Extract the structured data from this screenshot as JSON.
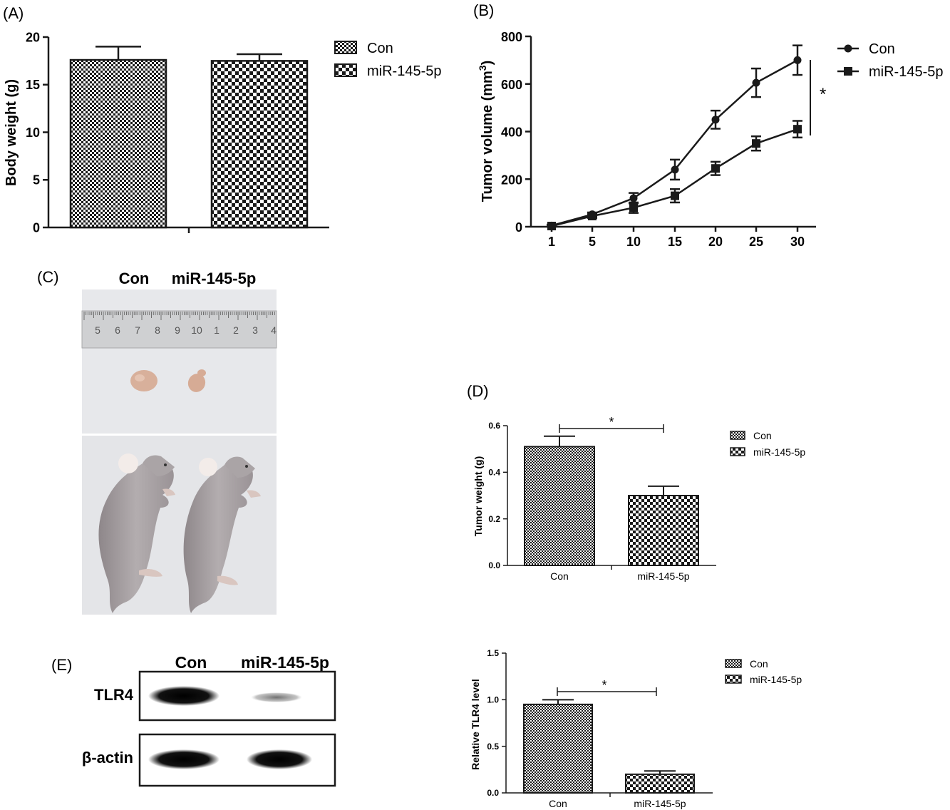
{
  "chart_data": [
    {
      "panel": "(A)",
      "type": "bar",
      "categories": [
        "Con",
        "miR-145-5p"
      ],
      "values": [
        17.6,
        17.5
      ],
      "errors": [
        1.4,
        0.7
      ],
      "ylabel": "Body weight (g)",
      "xlabel": "",
      "ylim": [
        0,
        20
      ],
      "yticks": [
        "0",
        "5",
        "10",
        "15",
        "20"
      ],
      "legend": [
        "Con",
        "miR-145-5p"
      ],
      "legend_position": "right"
    },
    {
      "panel": "(B)",
      "type": "line",
      "x": [
        "1",
        "5",
        "10",
        "15",
        "20",
        "25",
        "30"
      ],
      "series": [
        {
          "name": "Con",
          "marker": "circle",
          "values": [
            5,
            52,
            120,
            240,
            450,
            605,
            700
          ],
          "errors": [
            4,
            8,
            22,
            42,
            38,
            60,
            62
          ]
        },
        {
          "name": "miR-145-5p",
          "marker": "square",
          "values": [
            3,
            45,
            80,
            130,
            245,
            350,
            410
          ],
          "errors": [
            3,
            8,
            22,
            28,
            28,
            30,
            35
          ]
        }
      ],
      "ylabel_main": "Tumor volume (mm",
      "ylabel_sup": "3",
      "ylabel_close": ")",
      "ylim": [
        0,
        800
      ],
      "yticks": [
        "0",
        "200",
        "400",
        "600",
        "800"
      ],
      "significance": "*",
      "legend_position": "right"
    },
    {
      "panel": "(D)",
      "type": "bar",
      "categories": [
        "Con",
        "miR-145-5p"
      ],
      "values": [
        0.51,
        0.3
      ],
      "errors": [
        0.045,
        0.04
      ],
      "ylabel": "Tumor weight (g)",
      "ylim": [
        0,
        0.6
      ],
      "yticks": [
        "0.0",
        "0.2",
        "0.4",
        "0.6"
      ],
      "significance": "*",
      "legend": [
        "Con",
        "miR-145-5p"
      ],
      "legend_position": "right"
    },
    {
      "panel": "(E)",
      "type": "bar",
      "categories": [
        "Con",
        "miR-145-5p"
      ],
      "values": [
        0.95,
        0.2
      ],
      "errors": [
        0.05,
        0.035
      ],
      "ylabel": "Relative TLR4 level",
      "ylim": [
        0,
        1.5
      ],
      "yticks": [
        "0.0",
        "0.5",
        "1.0",
        "1.5"
      ],
      "significance": "*",
      "legend": [
        "Con",
        "miR-145-5p"
      ],
      "legend_position": "right"
    }
  ],
  "panel_c": {
    "label": "(C)",
    "col_con": "Con",
    "col_mir": "miR-145-5p",
    "ruler_numbers": [
      "5",
      "6",
      "7",
      "8",
      "9",
      "10",
      "1",
      "2",
      "3",
      "4"
    ]
  },
  "panel_e_blot": {
    "label": "(E)",
    "col_con": "Con",
    "col_mir": "miR-145-5p",
    "row_tlr4": "TLR4",
    "row_actin": "β-actin"
  },
  "colors": {
    "axis": "#1a1a1a",
    "bar_edge": "#1a1a1a",
    "photo_bg": "#e6e7ea",
    "mouse": "#a7a1a3",
    "tumor": "#d9b39e"
  },
  "patterns": {
    "con": "fine-check",
    "mir": "coarse-check"
  }
}
